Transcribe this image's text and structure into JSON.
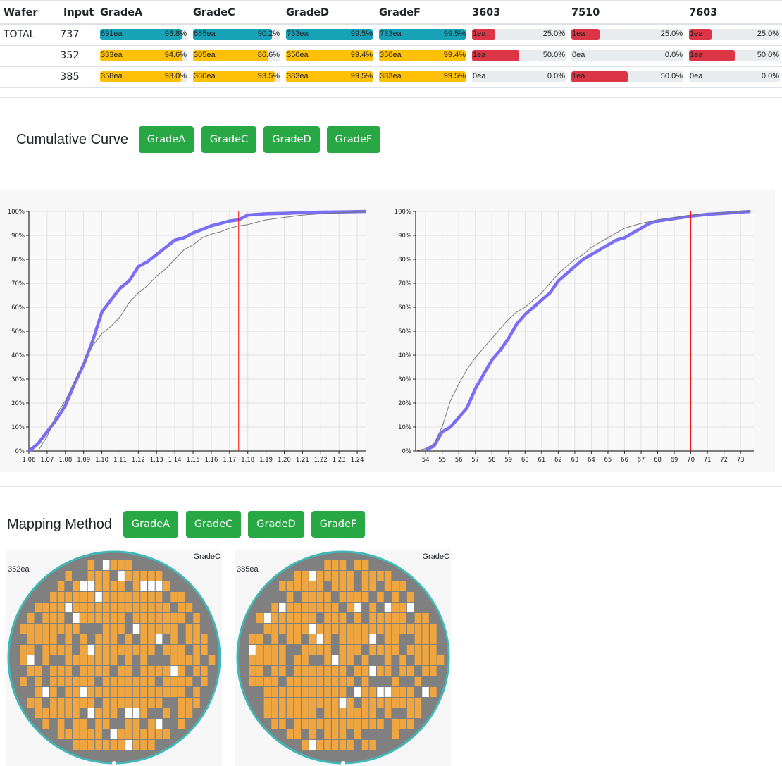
{
  "summary": {
    "headers": [
      "Wafer",
      "Input",
      "GradeA",
      "GradeC",
      "GradeD",
      "GradeF",
      "3603",
      "7510",
      "7603"
    ],
    "rows": [
      {
        "wafer": "TOTAL",
        "input": "737",
        "cells": [
          {
            "count": "691ea",
            "pct": "93.8%",
            "value": 93.8,
            "kind": "grade"
          },
          {
            "count": "665ea",
            "pct": "90.2%",
            "value": 90.2,
            "kind": "grade"
          },
          {
            "count": "733ea",
            "pct": "99.5%",
            "value": 99.5,
            "kind": "grade"
          },
          {
            "count": "733ea",
            "pct": "99.5%",
            "value": 99.5,
            "kind": "grade"
          },
          {
            "count": "1ea",
            "pct": "25.0%",
            "value": 25.0,
            "kind": "defect"
          },
          {
            "count": "1ea",
            "pct": "25.0%",
            "value": 25.0,
            "kind": "defect"
          },
          {
            "count": "1ea",
            "pct": "25.0%",
            "value": 25.0,
            "kind": "defect"
          }
        ]
      },
      {
        "wafer": "",
        "input": "352",
        "cells": [
          {
            "count": "333ea",
            "pct": "94.6%",
            "value": 94.6,
            "kind": "grade"
          },
          {
            "count": "305ea",
            "pct": "86.6%",
            "value": 86.6,
            "kind": "grade"
          },
          {
            "count": "350ea",
            "pct": "99.4%",
            "value": 99.4,
            "kind": "grade"
          },
          {
            "count": "350ea",
            "pct": "99.4%",
            "value": 99.4,
            "kind": "grade"
          },
          {
            "count": "1ea",
            "pct": "50.0%",
            "value": 50.0,
            "kind": "defect"
          },
          {
            "count": "0ea",
            "pct": "0.0%",
            "value": 0.0,
            "kind": "defect"
          },
          {
            "count": "1ea",
            "pct": "50.0%",
            "value": 50.0,
            "kind": "defect"
          }
        ]
      },
      {
        "wafer": "",
        "input": "385",
        "cells": [
          {
            "count": "358ea",
            "pct": "93.0%",
            "value": 93.0,
            "kind": "grade"
          },
          {
            "count": "360ea",
            "pct": "93.5%",
            "value": 93.5,
            "kind": "grade"
          },
          {
            "count": "383ea",
            "pct": "99.5%",
            "value": 99.5,
            "kind": "grade"
          },
          {
            "count": "383ea",
            "pct": "99.5%",
            "value": 99.5,
            "kind": "grade"
          },
          {
            "count": "0ea",
            "pct": "0.0%",
            "value": 0.0,
            "kind": "defect"
          },
          {
            "count": "1ea",
            "pct": "50.0%",
            "value": 50.0,
            "kind": "defect"
          },
          {
            "count": "0ea",
            "pct": "0.0%",
            "value": 0.0,
            "kind": "defect"
          }
        ]
      }
    ]
  },
  "colors": {
    "total_bar": "#17a2b8",
    "wafer_bar": "#ffc107",
    "defect_bar": "#dc3545",
    "button": "#28a745",
    "curve_main": "#7b6ef6",
    "curve_ref": "#777777",
    "spec_line": "#ff0000",
    "die_good": "#f0a640",
    "die_fail": "#808080",
    "die_empty": "#ffffff",
    "wafer_edge": "#40b8b8"
  },
  "cumulative": {
    "title": "Cumulative Curve",
    "buttons": [
      "GradeA",
      "GradeC",
      "GradeD",
      "GradeF"
    ]
  },
  "mapping": {
    "title": "Mapping Method",
    "buttons": [
      "GradeA",
      "GradeC",
      "GradeD",
      "GradeF"
    ],
    "wafers": [
      {
        "count": "352ea",
        "grade": "GradeC"
      },
      {
        "count": "385ea",
        "grade": "GradeC"
      }
    ]
  },
  "chart_data": [
    {
      "type": "line",
      "title": "",
      "xlabel": "",
      "ylabel": "",
      "xlim": [
        1.06,
        1.245
      ],
      "ylim": [
        0,
        100
      ],
      "grid": true,
      "x_ticks": [
        "1.06",
        "1.07",
        "1.08",
        "1.09",
        "1.10",
        "1.11",
        "1.12",
        "1.13",
        "1.14",
        "1.15",
        "1.16",
        "1.17",
        "1.18",
        "1.19",
        "1.20",
        "1.21",
        "1.22",
        "1.23",
        "1.24"
      ],
      "y_ticks": [
        "0%",
        "10%",
        "20%",
        "30%",
        "40%",
        "50%",
        "60%",
        "70%",
        "80%",
        "90%",
        "100%"
      ],
      "spec_line_x": 1.175,
      "series": [
        {
          "role": "main",
          "x": [
            1.06,
            1.065,
            1.07,
            1.075,
            1.08,
            1.085,
            1.09,
            1.095,
            1.1,
            1.105,
            1.11,
            1.115,
            1.12,
            1.125,
            1.13,
            1.135,
            1.14,
            1.145,
            1.15,
            1.155,
            1.16,
            1.165,
            1.17,
            1.175,
            1.18,
            1.19,
            1.2,
            1.21,
            1.22,
            1.23,
            1.24,
            1.245
          ],
          "y": [
            0,
            3,
            8,
            13,
            19,
            28,
            36,
            46,
            58,
            63,
            68,
            71,
            77,
            79,
            82,
            85,
            88,
            89,
            91,
            92.5,
            94,
            95,
            96,
            96.5,
            98.5,
            99,
            99.2,
            99.5,
            99.7,
            99.8,
            99.9,
            100
          ]
        },
        {
          "role": "reference",
          "x": [
            1.065,
            1.07,
            1.075,
            1.08,
            1.085,
            1.09,
            1.095,
            1.1,
            1.105,
            1.11,
            1.115,
            1.12,
            1.125,
            1.13,
            1.135,
            1.14,
            1.145,
            1.15,
            1.155,
            1.16,
            1.165,
            1.17,
            1.175,
            1.18,
            1.19,
            1.2,
            1.21,
            1.22,
            1.23,
            1.24,
            1.245
          ],
          "y": [
            0,
            6,
            15,
            21,
            29,
            37,
            44,
            49,
            52,
            56,
            62,
            66,
            69,
            73,
            76,
            80,
            84,
            86,
            89,
            90.5,
            91.5,
            93,
            94,
            94.5,
            96.5,
            97.5,
            98.5,
            99,
            99.5,
            99.8,
            100
          ]
        }
      ]
    },
    {
      "type": "line",
      "title": "",
      "xlabel": "",
      "ylabel": "",
      "xlim": [
        53.4,
        73.8
      ],
      "ylim": [
        0,
        100
      ],
      "grid": true,
      "x_ticks": [
        "54",
        "55",
        "56",
        "57",
        "58",
        "59",
        "60",
        "61",
        "62",
        "63",
        "64",
        "65",
        "66",
        "67",
        "68",
        "69",
        "70",
        "71",
        "72",
        "73"
      ],
      "y_ticks": [
        "0%",
        "10%",
        "20%",
        "30%",
        "40%",
        "50%",
        "60%",
        "70%",
        "80%",
        "90%",
        "100%"
      ],
      "spec_line_x": 70,
      "series": [
        {
          "role": "main",
          "x": [
            54,
            54.5,
            55,
            55.5,
            56,
            56.5,
            57,
            57.5,
            58,
            58.5,
            59,
            59.5,
            60,
            60.5,
            61,
            61.5,
            62,
            62.5,
            63,
            63.5,
            64,
            64.5,
            65,
            65.5,
            66,
            66.5,
            67,
            67.5,
            68,
            68.5,
            69,
            70,
            71,
            72,
            73,
            73.6
          ],
          "y": [
            0.5,
            2,
            8,
            10,
            14,
            18,
            26,
            32,
            38,
            42,
            47,
            53,
            57,
            60,
            63,
            66,
            71,
            74,
            77,
            80,
            82,
            84,
            86,
            88,
            89,
            91,
            93,
            95,
            96,
            96.5,
            97,
            98,
            98.8,
            99.2,
            99.7,
            100
          ]
        },
        {
          "role": "reference",
          "x": [
            53.4,
            54,
            54.5,
            55,
            55.5,
            56,
            56.5,
            57,
            57.5,
            58,
            58.5,
            59,
            59.5,
            60,
            60.5,
            61,
            61.5,
            62,
            62.5,
            63,
            63.5,
            64,
            64.5,
            65,
            65.5,
            66,
            66.5,
            67,
            68,
            69,
            70,
            71,
            72,
            73,
            73.6
          ],
          "y": [
            0,
            1,
            3,
            10,
            21,
            28,
            34,
            39,
            43,
            47,
            51,
            55,
            58,
            60,
            63,
            66,
            70,
            74,
            77,
            80,
            82,
            85,
            87,
            89,
            91,
            93,
            94,
            95,
            96.5,
            97.5,
            98.5,
            99,
            99.5,
            99.8,
            100
          ]
        }
      ]
    }
  ]
}
